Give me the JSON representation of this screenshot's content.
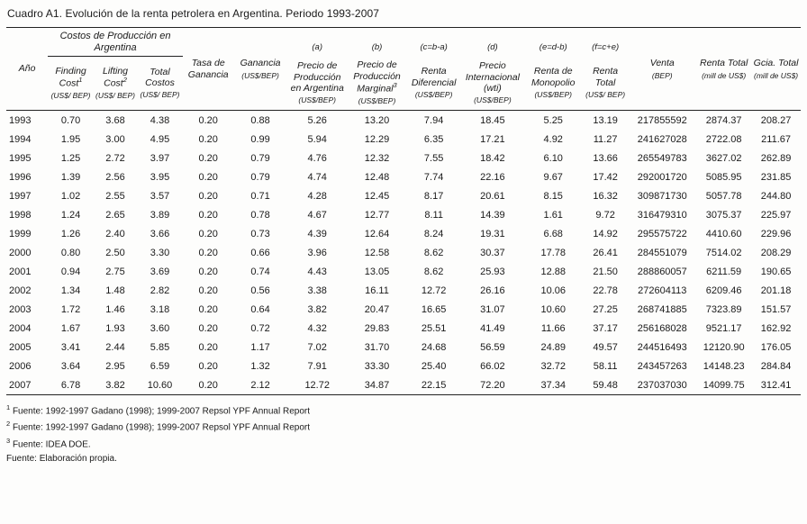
{
  "page": {
    "title": "Cuadro A1. Evolución de la renta petrolera en Argentina. Periodo 1993-2007"
  },
  "table": {
    "group_header": "Costos de Producción en Argentina",
    "letters": [
      "(a)",
      "(b)",
      "(c=b-a)",
      "(d)",
      "(e=d-b)",
      "(f=c+e)"
    ],
    "columns": [
      {
        "label": "Año",
        "sup": "",
        "unit": ""
      },
      {
        "label": "Finding Cost",
        "sup": "1",
        "unit": "(US$/ BEP)"
      },
      {
        "label": "Lifting Cost",
        "sup": "2",
        "unit": "(US$/ BEP)"
      },
      {
        "label": "Total Costos",
        "sup": "",
        "unit": "(US$/ BEP)"
      },
      {
        "label": "Tasa de Ganancia",
        "sup": "",
        "unit": ""
      },
      {
        "label": "Ganancia",
        "sup": "",
        "unit": "(US$/BEP)"
      },
      {
        "label": "Precio de Producción en Argentina",
        "sup": "",
        "unit": "(US$/BEP)"
      },
      {
        "label": "Precio de Producción Marginal",
        "sup": "3",
        "unit": "(US$/BEP)"
      },
      {
        "label": "Renta Diferencial",
        "sup": "",
        "unit": "(US$/BEP)"
      },
      {
        "label": "Precio Internacional (wti)",
        "sup": "",
        "unit": "(US$/BEP)"
      },
      {
        "label": "Renta de Monopolio",
        "sup": "",
        "unit": "(US$/BEP)"
      },
      {
        "label": "Renta Total",
        "sup": "",
        "unit": "(US$/ BEP)"
      },
      {
        "label": "Venta",
        "sup": "",
        "unit": "(BEP)"
      },
      {
        "label": "Renta Total",
        "sup": "",
        "unit": "(mill de US$)"
      },
      {
        "label": "Gcia. Total",
        "sup": "",
        "unit": "(mill de US$)"
      }
    ],
    "rows": [
      [
        "1993",
        "0.70",
        "3.68",
        "4.38",
        "0.20",
        "0.88",
        "5.26",
        "13.20",
        "7.94",
        "18.45",
        "5.25",
        "13.19",
        "217855592",
        "2874.37",
        "208.27"
      ],
      [
        "1994",
        "1.95",
        "3.00",
        "4.95",
        "0.20",
        "0.99",
        "5.94",
        "12.29",
        "6.35",
        "17.21",
        "4.92",
        "11.27",
        "241627028",
        "2722.08",
        "211.67"
      ],
      [
        "1995",
        "1.25",
        "2.72",
        "3.97",
        "0.20",
        "0.79",
        "4.76",
        "12.32",
        "7.55",
        "18.42",
        "6.10",
        "13.66",
        "265549783",
        "3627.02",
        "262.89"
      ],
      [
        "1996",
        "1.39",
        "2.56",
        "3.95",
        "0.20",
        "0.79",
        "4.74",
        "12.48",
        "7.74",
        "22.16",
        "9.67",
        "17.42",
        "292001720",
        "5085.95",
        "231.85"
      ],
      [
        "1997",
        "1.02",
        "2.55",
        "3.57",
        "0.20",
        "0.71",
        "4.28",
        "12.45",
        "8.17",
        "20.61",
        "8.15",
        "16.32",
        "309871730",
        "5057.78",
        "244.80"
      ],
      [
        "1998",
        "1.24",
        "2.65",
        "3.89",
        "0.20",
        "0.78",
        "4.67",
        "12.77",
        "8.11",
        "14.39",
        "1.61",
        "9.72",
        "316479310",
        "3075.37",
        "225.97"
      ],
      [
        "1999",
        "1.26",
        "2.40",
        "3.66",
        "0.20",
        "0.73",
        "4.39",
        "12.64",
        "8.24",
        "19.31",
        "6.68",
        "14.92",
        "295575722",
        "4410.60",
        "229.96"
      ],
      [
        "2000",
        "0.80",
        "2.50",
        "3.30",
        "0.20",
        "0.66",
        "3.96",
        "12.58",
        "8.62",
        "30.37",
        "17.78",
        "26.41",
        "284551079",
        "7514.02",
        "208.29"
      ],
      [
        "2001",
        "0.94",
        "2.75",
        "3.69",
        "0.20",
        "0.74",
        "4.43",
        "13.05",
        "8.62",
        "25.93",
        "12.88",
        "21.50",
        "288860057",
        "6211.59",
        "190.65"
      ],
      [
        "2002",
        "1.34",
        "1.48",
        "2.82",
        "0.20",
        "0.56",
        "3.38",
        "16.11",
        "12.72",
        "26.16",
        "10.06",
        "22.78",
        "272604113",
        "6209.46",
        "201.18"
      ],
      [
        "2003",
        "1.72",
        "1.46",
        "3.18",
        "0.20",
        "0.64",
        "3.82",
        "20.47",
        "16.65",
        "31.07",
        "10.60",
        "27.25",
        "268741885",
        "7323.89",
        "151.57"
      ],
      [
        "2004",
        "1.67",
        "1.93",
        "3.60",
        "0.20",
        "0.72",
        "4.32",
        "29.83",
        "25.51",
        "41.49",
        "11.66",
        "37.17",
        "256168028",
        "9521.17",
        "162.92"
      ],
      [
        "2005",
        "3.41",
        "2.44",
        "5.85",
        "0.20",
        "1.17",
        "7.02",
        "31.70",
        "24.68",
        "56.59",
        "24.89",
        "49.57",
        "244516493",
        "12120.90",
        "176.05"
      ],
      [
        "2006",
        "3.64",
        "2.95",
        "6.59",
        "0.20",
        "1.32",
        "7.91",
        "33.30",
        "25.40",
        "66.02",
        "32.72",
        "58.11",
        "243457263",
        "14148.23",
        "284.84"
      ],
      [
        "2007",
        "6.78",
        "3.82",
        "10.60",
        "0.20",
        "2.12",
        "12.72",
        "34.87",
        "22.15",
        "72.20",
        "37.34",
        "59.48",
        "237037030",
        "14099.75",
        "312.41"
      ]
    ]
  },
  "footnotes": [
    {
      "marker": "1",
      "text": "Fuente: 1992-1997 Gadano (1998); 1999-2007 Repsol YPF Annual Report"
    },
    {
      "marker": "2",
      "text": "Fuente: 1992-1997 Gadano (1998); 1999-2007 Repsol YPF Annual Report"
    },
    {
      "marker": "3",
      "text": "Fuente: IDEA DOE."
    },
    {
      "marker": "",
      "text": "Fuente: Elaboración propia."
    }
  ]
}
